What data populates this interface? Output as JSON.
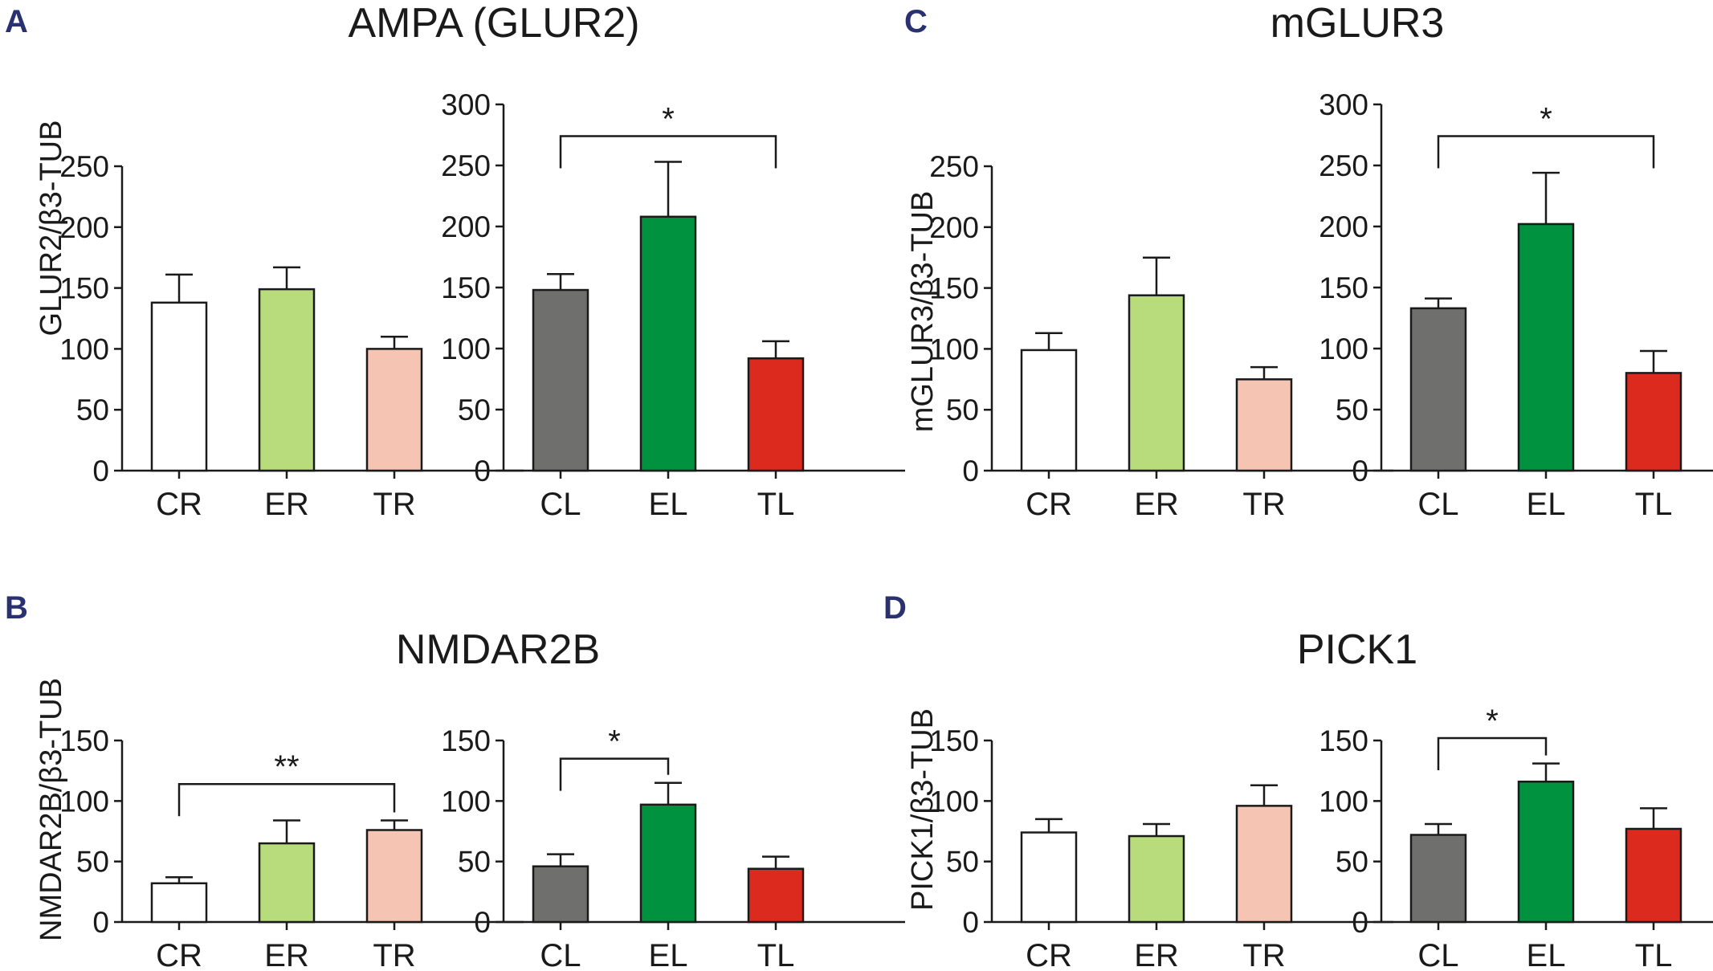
{
  "panels": [
    {
      "letter": "A",
      "title": "AMPA (GLUR2)",
      "ylabel": "GLUR2/β3-TUB",
      "charts": [
        {
          "type": "bar",
          "categories": [
            "CR",
            "ER",
            "TR"
          ],
          "values": [
            138,
            149,
            100
          ],
          "errors": [
            23,
            18,
            10
          ],
          "colors": [
            "#ffffff",
            "#b8dc7c",
            "#f6c4b2"
          ],
          "ylim": [
            0,
            250
          ],
          "yticks": [
            "0",
            "50",
            "100",
            "150",
            "200",
            "250"
          ],
          "sig": []
        },
        {
          "type": "bar",
          "categories": [
            "CL",
            "EL",
            "TL"
          ],
          "values": [
            148,
            208,
            92
          ],
          "errors": [
            13,
            45,
            14
          ],
          "colors": [
            "#6f6f6d",
            "#00923f",
            "#dc2a1f"
          ],
          "ylim": [
            0,
            300
          ],
          "yticks": [
            "0",
            "50",
            "100",
            "150",
            "200",
            "250",
            "300"
          ],
          "sig": [
            {
              "from": 0,
              "to": 2,
              "level": 274,
              "label": "*"
            }
          ]
        }
      ]
    },
    {
      "letter": "C",
      "title": "mGLUR3",
      "ylabel": "mGLUR3/β3-TUB",
      "charts": [
        {
          "type": "bar",
          "categories": [
            "CR",
            "ER",
            "TR"
          ],
          "values": [
            99,
            144,
            75
          ],
          "errors": [
            14,
            31,
            10
          ],
          "colors": [
            "#ffffff",
            "#b8dc7c",
            "#f6c4b2"
          ],
          "ylim": [
            0,
            250
          ],
          "yticks": [
            "0",
            "50",
            "100",
            "150",
            "200",
            "250"
          ],
          "sig": []
        },
        {
          "type": "bar",
          "categories": [
            "CL",
            "EL",
            "TL"
          ],
          "values": [
            133,
            202,
            80
          ],
          "errors": [
            8,
            42,
            18
          ],
          "colors": [
            "#6f6f6d",
            "#00923f",
            "#dc2a1f"
          ],
          "ylim": [
            0,
            300
          ],
          "yticks": [
            "0",
            "50",
            "100",
            "150",
            "200",
            "250",
            "300"
          ],
          "sig": [
            {
              "from": 0,
              "to": 2,
              "level": 274,
              "label": "*"
            }
          ]
        }
      ]
    },
    {
      "letter": "B",
      "title": "NMDAR2B",
      "ylabel": "NMDAR2B/β3-TUB",
      "charts": [
        {
          "type": "bar",
          "categories": [
            "CR",
            "ER",
            "TR"
          ],
          "values": [
            32,
            65,
            76
          ],
          "errors": [
            5,
            19,
            8
          ],
          "colors": [
            "#ffffff",
            "#b8dc7c",
            "#f6c4b2"
          ],
          "ylim": [
            0,
            150
          ],
          "yticks": [
            "0",
            "50",
            "100",
            "150"
          ],
          "sig": [
            {
              "from": 0,
              "to": 2,
              "level": 114,
              "label": "**"
            }
          ]
        },
        {
          "type": "bar",
          "categories": [
            "CL",
            "EL",
            "TL"
          ],
          "values": [
            46,
            97,
            44
          ],
          "errors": [
            10,
            18,
            10
          ],
          "colors": [
            "#6f6f6d",
            "#00923f",
            "#dc2a1f"
          ],
          "ylim": [
            0,
            150
          ],
          "yticks": [
            "0",
            "50",
            "100",
            "150"
          ],
          "sig": [
            {
              "from": 0,
              "to": 1,
              "level": 135,
              "label": "*"
            }
          ]
        }
      ]
    },
    {
      "letter": "D",
      "title": "PICK1",
      "ylabel": "PICK1/β3-TUB",
      "charts": [
        {
          "type": "bar",
          "categories": [
            "CR",
            "ER",
            "TR"
          ],
          "values": [
            74,
            71,
            96
          ],
          "errors": [
            11,
            10,
            17
          ],
          "colors": [
            "#ffffff",
            "#b8dc7c",
            "#f6c4b2"
          ],
          "ylim": [
            0,
            150
          ],
          "yticks": [
            "0",
            "50",
            "100",
            "150"
          ],
          "sig": []
        },
        {
          "type": "bar",
          "categories": [
            "CL",
            "EL",
            "TL"
          ],
          "values": [
            72,
            116,
            77
          ],
          "errors": [
            9,
            15,
            17
          ],
          "colors": [
            "#6f6f6d",
            "#00923f",
            "#dc2a1f"
          ],
          "ylim": [
            0,
            150
          ],
          "yticks": [
            "0",
            "50",
            "100",
            "150"
          ],
          "sig": [
            {
              "from": 0,
              "to": 1,
              "level": 152,
              "label": "*"
            }
          ]
        }
      ]
    }
  ]
}
